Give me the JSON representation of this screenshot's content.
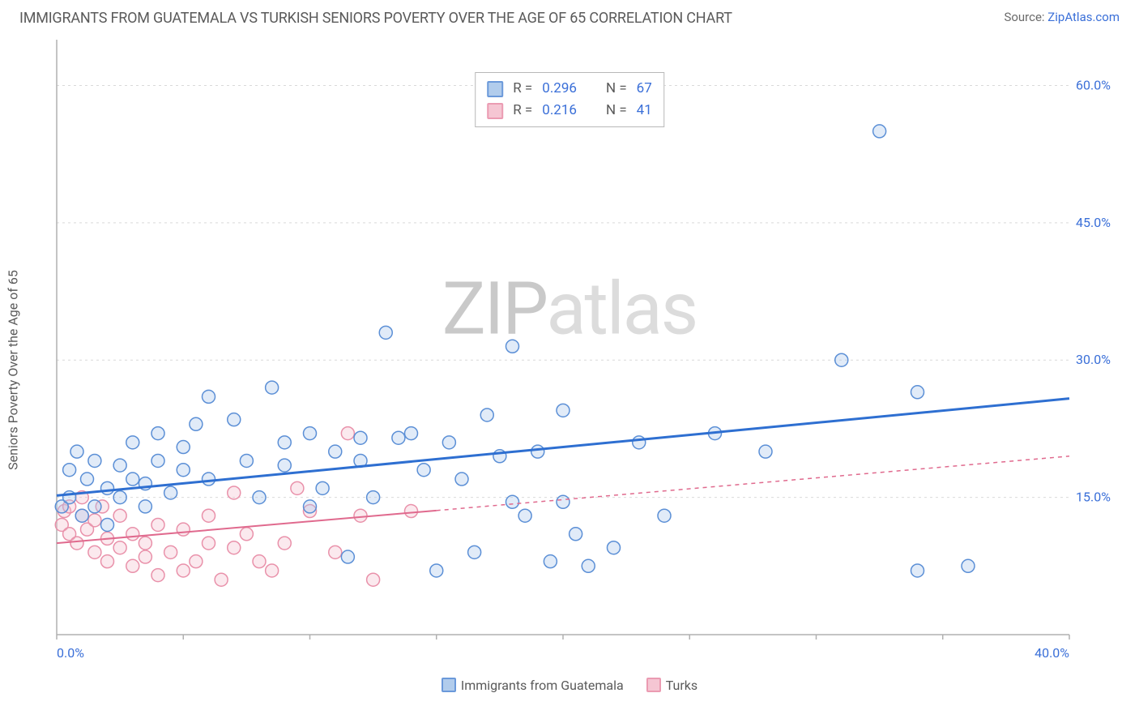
{
  "title": "IMMIGRANTS FROM GUATEMALA VS TURKISH SENIORS POVERTY OVER THE AGE OF 65 CORRELATION CHART",
  "source_prefix": "Source: ",
  "source_link": "ZipAtlas.com",
  "y_axis_label": "Seniors Poverty Over the Age of 65",
  "watermark_a": "ZIP",
  "watermark_b": "atlas",
  "watermark_color_a": "#c9c9c9",
  "watermark_color_b": "#dcdcdc",
  "chart": {
    "type": "scatter",
    "plot_bg": "#ffffff",
    "axis_line_color": "#b0b0b0",
    "grid_color": "#d9d9d9",
    "grid_dash": "3,4",
    "xlim": [
      0,
      40
    ],
    "ylim": [
      0,
      65
    ],
    "x_ticks": [
      0,
      40
    ],
    "x_tick_labels": [
      "0.0%",
      "40.0%"
    ],
    "x_minor_ticks": [
      5,
      10,
      15,
      20,
      25,
      30,
      35
    ],
    "y_ticks": [
      15,
      30,
      45,
      60
    ],
    "y_tick_labels": [
      "15.0%",
      "30.0%",
      "45.0%",
      "60.0%"
    ],
    "tick_label_color": "#3a6fd8",
    "marker_radius": 8,
    "marker_stroke_width": 1.5,
    "marker_fill_opacity": 0.35,
    "series": [
      {
        "name": "Immigrants from Guatemala",
        "stroke": "#5b8fd6",
        "fill": "#a9c7ea",
        "trend_color": "#2e6fd1",
        "trend_width": 3,
        "trend_dash_after_x": null,
        "R": "0.296",
        "N": "67",
        "trend": {
          "x1": 0,
          "y1": 15.2,
          "x2": 40,
          "y2": 25.8
        },
        "points": [
          [
            0.2,
            14.0
          ],
          [
            0.5,
            15.0
          ],
          [
            0.5,
            18.0
          ],
          [
            0.8,
            20.0
          ],
          [
            1.0,
            13.0
          ],
          [
            1.2,
            17.0
          ],
          [
            1.5,
            14.0
          ],
          [
            1.5,
            19.0
          ],
          [
            2.0,
            16.0
          ],
          [
            2.0,
            12.0
          ],
          [
            2.5,
            15.0
          ],
          [
            2.5,
            18.5
          ],
          [
            3.0,
            17.0
          ],
          [
            3.0,
            21.0
          ],
          [
            3.5,
            14.0
          ],
          [
            3.5,
            16.5
          ],
          [
            4.0,
            22.0
          ],
          [
            4.0,
            19.0
          ],
          [
            4.5,
            15.5
          ],
          [
            5.0,
            18.0
          ],
          [
            5.0,
            20.5
          ],
          [
            5.5,
            23.0
          ],
          [
            6.0,
            17.0
          ],
          [
            6.0,
            26.0
          ],
          [
            7.0,
            23.5
          ],
          [
            7.5,
            19.0
          ],
          [
            8.0,
            15.0
          ],
          [
            8.5,
            27.0
          ],
          [
            9.0,
            21.0
          ],
          [
            9.0,
            18.5
          ],
          [
            10.0,
            22.0
          ],
          [
            10.0,
            14.0
          ],
          [
            10.5,
            16.0
          ],
          [
            11.0,
            20.0
          ],
          [
            11.5,
            8.5
          ],
          [
            12.0,
            21.5
          ],
          [
            12.0,
            19.0
          ],
          [
            12.5,
            15.0
          ],
          [
            13.0,
            33.0
          ],
          [
            13.5,
            21.5
          ],
          [
            14.0,
            22.0
          ],
          [
            14.5,
            18.0
          ],
          [
            15.0,
            7.0
          ],
          [
            15.5,
            21.0
          ],
          [
            16.0,
            17.0
          ],
          [
            16.5,
            9.0
          ],
          [
            17.0,
            24.0
          ],
          [
            17.5,
            19.5
          ],
          [
            18.0,
            31.5
          ],
          [
            18.0,
            14.5
          ],
          [
            18.5,
            13.0
          ],
          [
            19.0,
            20.0
          ],
          [
            19.5,
            8.0
          ],
          [
            20.0,
            14.5
          ],
          [
            20.0,
            24.5
          ],
          [
            20.5,
            11.0
          ],
          [
            21.0,
            7.5
          ],
          [
            22.0,
            9.5
          ],
          [
            23.0,
            21.0
          ],
          [
            24.0,
            13.0
          ],
          [
            26.0,
            22.0
          ],
          [
            28.0,
            20.0
          ],
          [
            31.0,
            30.0
          ],
          [
            34.0,
            26.5
          ],
          [
            32.5,
            55.0
          ],
          [
            34.0,
            7.0
          ],
          [
            36.0,
            7.5
          ]
        ]
      },
      {
        "name": "Turks",
        "stroke": "#e991aa",
        "fill": "#f4c0cf",
        "trend_color": "#e06a8e",
        "trend_width": 2,
        "trend_dash_after_x": 15,
        "R": "0.216",
        "N": "41",
        "trend": {
          "x1": 0,
          "y1": 10.0,
          "x2": 40,
          "y2": 19.5
        },
        "points": [
          [
            0.2,
            12.0
          ],
          [
            0.3,
            13.5
          ],
          [
            0.5,
            11.0
          ],
          [
            0.5,
            14.0
          ],
          [
            0.8,
            10.0
          ],
          [
            1.0,
            13.0
          ],
          [
            1.0,
            15.0
          ],
          [
            1.2,
            11.5
          ],
          [
            1.5,
            9.0
          ],
          [
            1.5,
            12.5
          ],
          [
            1.8,
            14.0
          ],
          [
            2.0,
            8.0
          ],
          [
            2.0,
            10.5
          ],
          [
            2.5,
            9.5
          ],
          [
            2.5,
            13.0
          ],
          [
            3.0,
            7.5
          ],
          [
            3.0,
            11.0
          ],
          [
            3.5,
            8.5
          ],
          [
            3.5,
            10.0
          ],
          [
            4.0,
            6.5
          ],
          [
            4.0,
            12.0
          ],
          [
            4.5,
            9.0
          ],
          [
            5.0,
            7.0
          ],
          [
            5.0,
            11.5
          ],
          [
            5.5,
            8.0
          ],
          [
            6.0,
            10.0
          ],
          [
            6.0,
            13.0
          ],
          [
            6.5,
            6.0
          ],
          [
            7.0,
            9.5
          ],
          [
            7.0,
            15.5
          ],
          [
            7.5,
            11.0
          ],
          [
            8.0,
            8.0
          ],
          [
            8.5,
            7.0
          ],
          [
            9.0,
            10.0
          ],
          [
            9.5,
            16.0
          ],
          [
            10.0,
            13.5
          ],
          [
            11.0,
            9.0
          ],
          [
            11.5,
            22.0
          ],
          [
            12.0,
            13.0
          ],
          [
            12.5,
            6.0
          ],
          [
            14.0,
            13.5
          ]
        ]
      }
    ]
  },
  "top_legend_labels": {
    "R_prefix": "R = ",
    "N_prefix": "N = "
  },
  "bottom_legend": [
    {
      "label_key": 0
    },
    {
      "label_key": 1
    }
  ]
}
